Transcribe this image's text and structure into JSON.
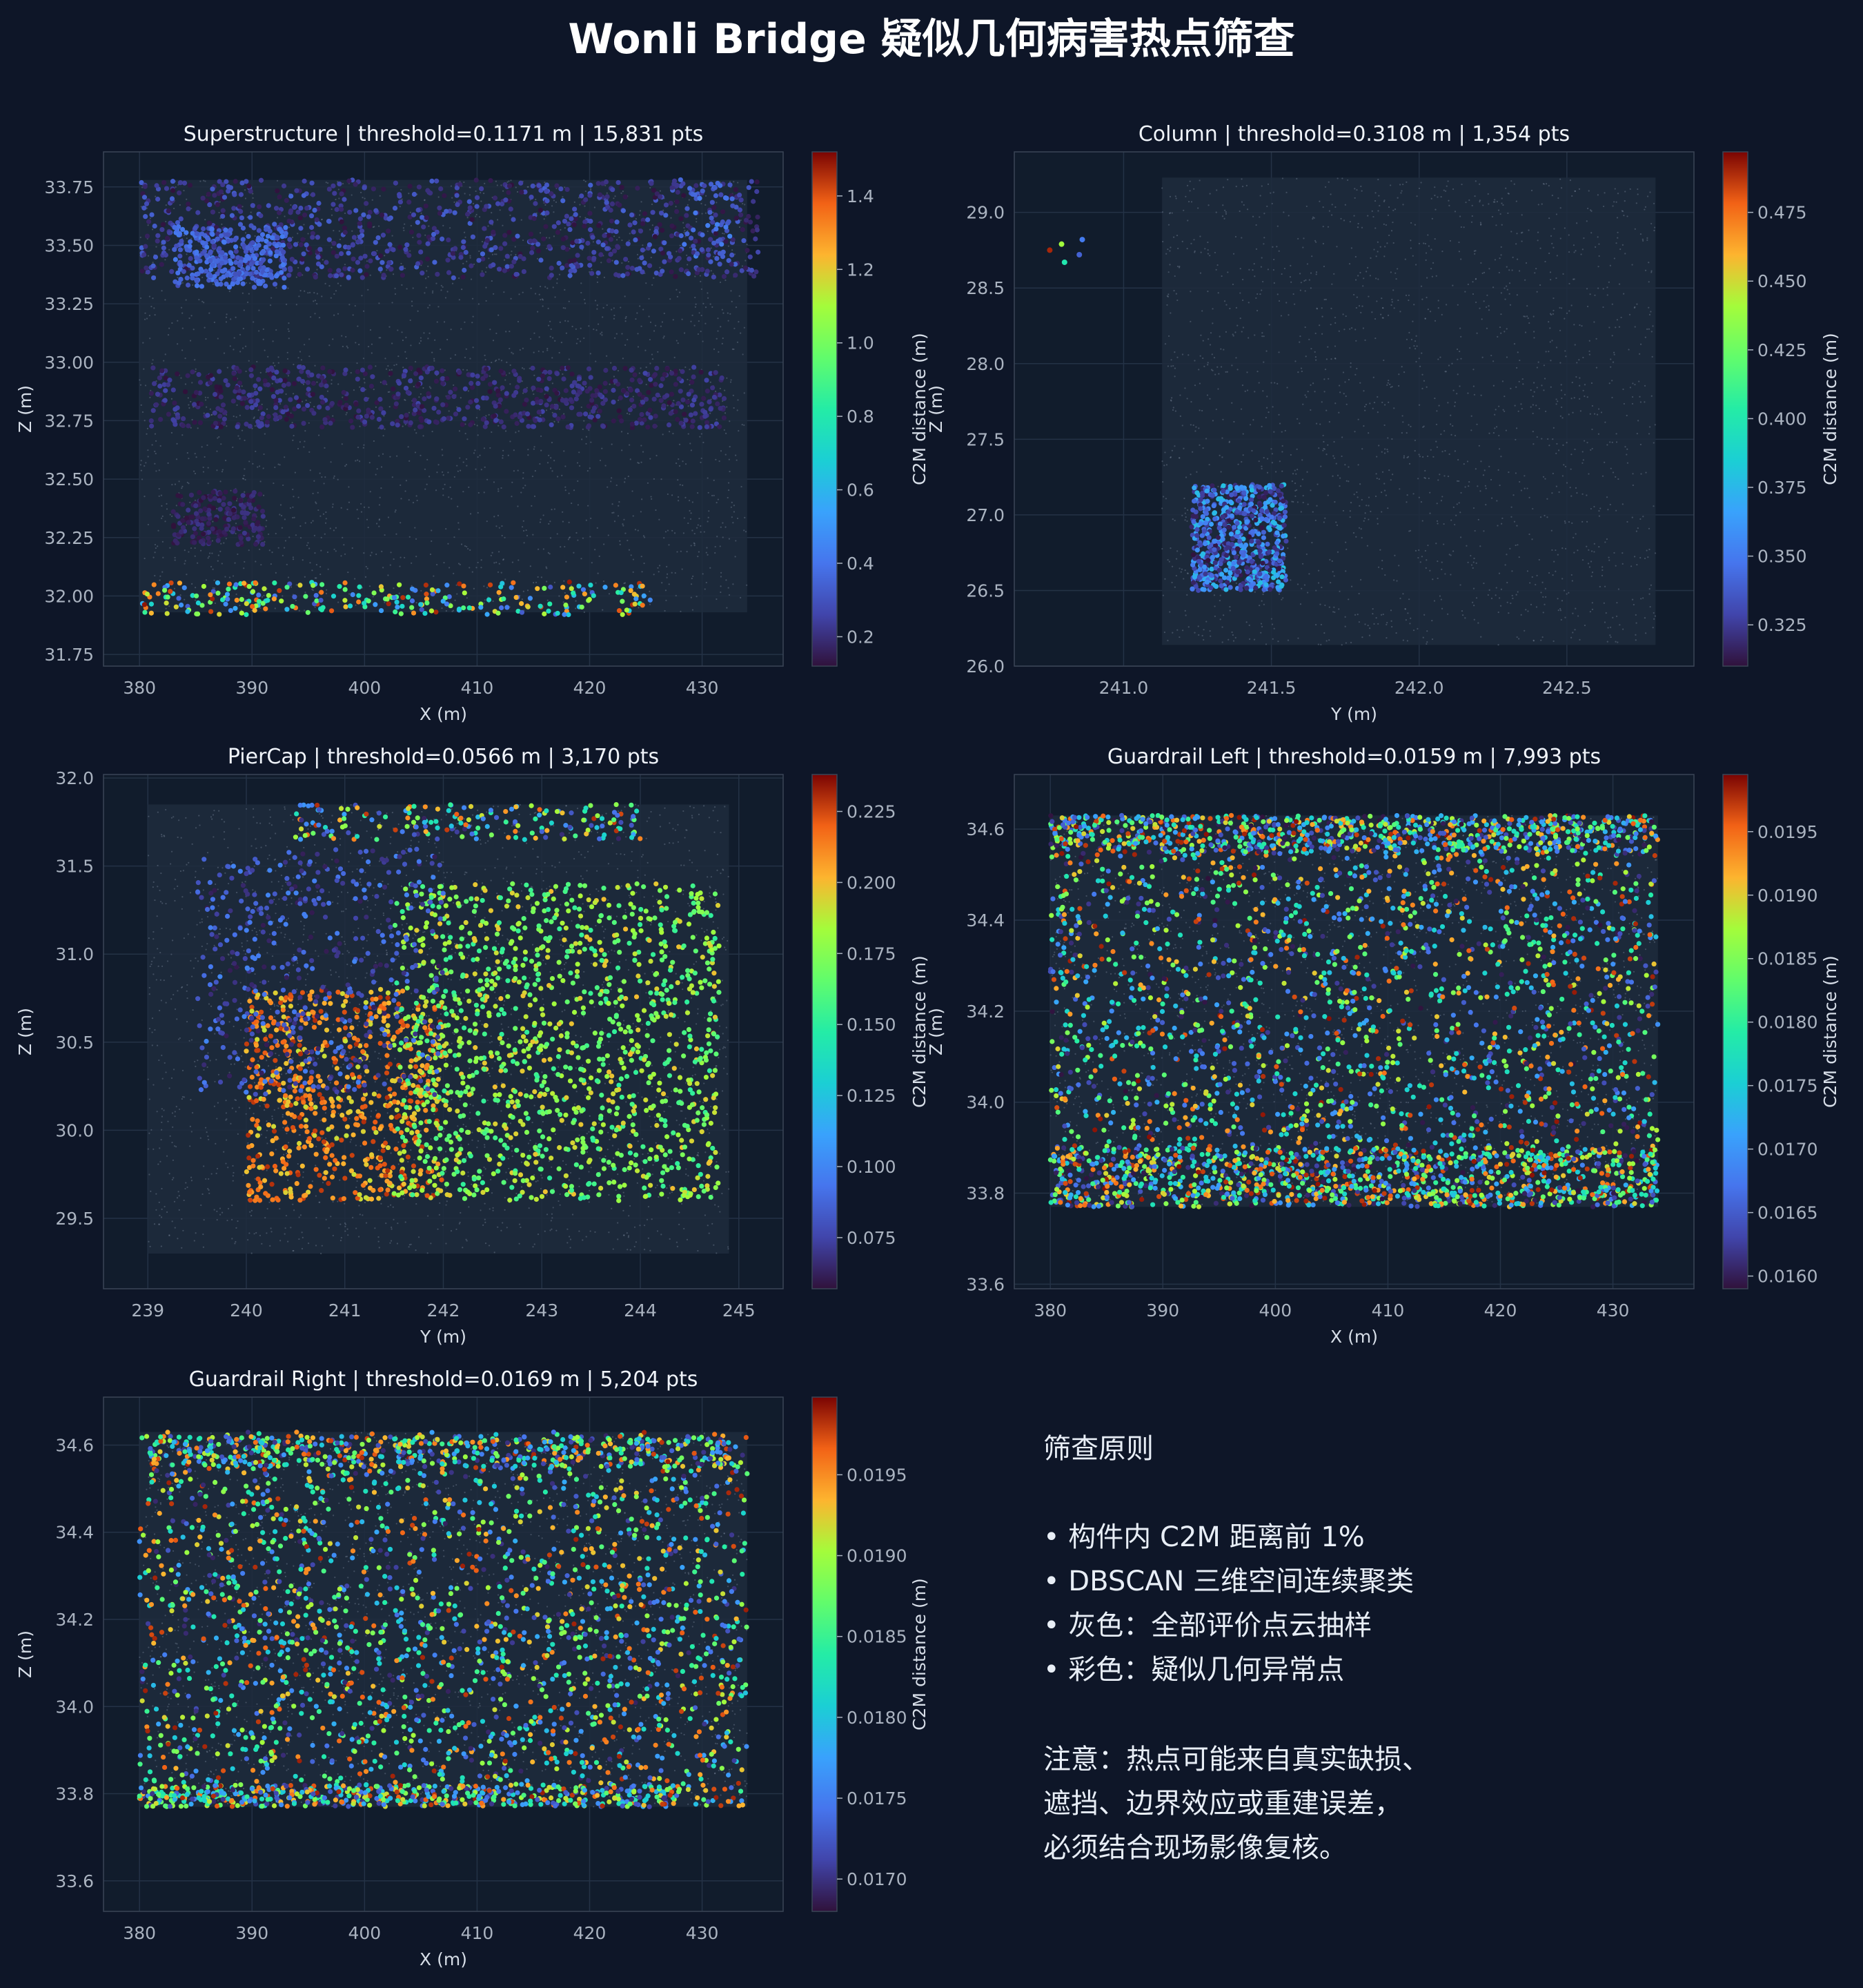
{
  "title": "Wonli Bridge 疑似几何病害热点筛查",
  "colorbar_label": "C2M distance (m)",
  "colors": {
    "background": "#0e1628",
    "axes_bg": "#111c2c",
    "grid": "#243246",
    "gray_points": "#8a98ad"
  },
  "chart_data": [
    {
      "type": "scatter",
      "title": "Superstructure | threshold=0.1171 m | 15,831 pts",
      "xlabel": "X (m)",
      "ylabel": "Z (m)",
      "xlim": [
        376.8,
        437.2
      ],
      "ylim": [
        31.7,
        33.9
      ],
      "xticks": [
        380,
        390,
        400,
        410,
        420,
        430
      ],
      "xtick_labels": [
        "380",
        "390",
        "400",
        "410",
        "420",
        "430"
      ],
      "yticks": [
        31.75,
        32.0,
        32.25,
        32.5,
        32.75,
        33.0,
        33.25,
        33.5,
        33.75
      ],
      "ytick_labels": [
        "31.75",
        "32.00",
        "32.25",
        "32.50",
        "32.75",
        "33.00",
        "33.25",
        "33.50",
        "33.75"
      ],
      "colorbar": {
        "vmin": 0.12,
        "vmax": 1.52,
        "ticks": [
          0.2,
          0.4,
          0.6,
          0.8,
          1.0,
          1.2,
          1.4
        ],
        "tick_labels": [
          "0.2",
          "0.4",
          "0.6",
          "0.8",
          "1.0",
          "1.2",
          "1.4"
        ]
      },
      "background_cloud": [
        {
          "x": [
            380,
            434
          ],
          "y": [
            31.93,
            33.78
          ]
        }
      ],
      "hotspot_clusters": [
        {
          "x": [
            380,
            435
          ],
          "y": [
            33.36,
            33.78
          ],
          "c": [
            0.12,
            0.35
          ],
          "n": 900
        },
        {
          "x": [
            383,
            393
          ],
          "y": [
            33.32,
            33.58
          ],
          "c": [
            0.28,
            0.42
          ],
          "n": 300
        },
        {
          "x": [
            381,
            432
          ],
          "y": [
            32.72,
            32.98
          ],
          "c": [
            0.12,
            0.26
          ],
          "n": 700
        },
        {
          "x": [
            383,
            391
          ],
          "y": [
            32.22,
            32.45
          ],
          "c": [
            0.12,
            0.22
          ],
          "n": 200
        },
        {
          "x": [
            380,
            426
          ],
          "y": [
            31.92,
            32.06
          ],
          "c": [
            0.3,
            1.5
          ],
          "n": 260
        },
        {
          "x": [
            428,
            433
          ],
          "y": [
            33.45,
            33.8
          ],
          "c": [
            0.3,
            0.45
          ],
          "n": 40
        }
      ]
    },
    {
      "type": "scatter",
      "title": "Column | threshold=0.3108 m | 1,354 pts",
      "xlabel": "Y (m)",
      "ylabel": "Z (m)",
      "xlim": [
        240.63,
        242.93
      ],
      "ylim": [
        26.0,
        29.4
      ],
      "xticks": [
        241.0,
        241.5,
        242.0,
        242.5
      ],
      "xtick_labels": [
        "241.0",
        "241.5",
        "242.0",
        "242.5"
      ],
      "yticks": [
        26.0,
        26.5,
        27.0,
        27.5,
        28.0,
        28.5,
        29.0
      ],
      "ytick_labels": [
        "26.0",
        "26.5",
        "27.0",
        "27.5",
        "28.0",
        "28.5",
        "29.0"
      ],
      "colorbar": {
        "vmin": 0.31,
        "vmax": 0.497,
        "ticks": [
          0.325,
          0.35,
          0.375,
          0.4,
          0.425,
          0.45,
          0.475
        ],
        "tick_labels": [
          "0.325",
          "0.350",
          "0.375",
          "0.400",
          "0.425",
          "0.450",
          "0.475"
        ]
      },
      "background_cloud": [
        {
          "x": [
            241.13,
            242.8
          ],
          "y": [
            26.14,
            29.23
          ]
        }
      ],
      "hotspot_clusters": [
        {
          "x": [
            241.23,
            241.55
          ],
          "y": [
            26.5,
            27.2
          ],
          "c": [
            0.31,
            0.38
          ],
          "n": 700
        }
      ],
      "outliers": [
        {
          "x": 240.75,
          "y": 28.75,
          "c": 0.49
        },
        {
          "x": 240.79,
          "y": 28.79,
          "c": 0.44
        },
        {
          "x": 240.8,
          "y": 28.67,
          "c": 0.4
        },
        {
          "x": 240.85,
          "y": 28.72,
          "c": 0.34
        },
        {
          "x": 240.86,
          "y": 28.82,
          "c": 0.35
        }
      ]
    },
    {
      "type": "scatter",
      "title": "PierCap | threshold=0.0566 m | 3,170 pts",
      "xlabel": "Y (m)",
      "ylabel": "Z (m)",
      "xlim": [
        238.55,
        245.45
      ],
      "ylim": [
        29.1,
        32.02
      ],
      "xticks": [
        239,
        240,
        241,
        242,
        243,
        244,
        245
      ],
      "xtick_labels": [
        "239",
        "240",
        "241",
        "242",
        "243",
        "244",
        "245"
      ],
      "yticks": [
        29.5,
        30.0,
        30.5,
        31.0,
        31.5,
        32.0
      ],
      "ytick_labels": [
        "29.5",
        "30.0",
        "30.5",
        "31.0",
        "31.5",
        "32.0"
      ],
      "colorbar": {
        "vmin": 0.057,
        "vmax": 0.238,
        "ticks": [
          0.075,
          0.1,
          0.125,
          0.15,
          0.175,
          0.2,
          0.225
        ],
        "tick_labels": [
          "0.075",
          "0.100",
          "0.125",
          "0.150",
          "0.175",
          "0.200",
          "0.225"
        ]
      },
      "background_cloud": [
        {
          "x": [
            239.0,
            244.9
          ],
          "y": [
            29.3,
            31.85
          ]
        }
      ],
      "hotspot_clusters": [
        {
          "x": [
            240.0,
            242.0
          ],
          "y": [
            29.6,
            30.8
          ],
          "c": [
            0.19,
            0.23
          ],
          "n": 700
        },
        {
          "x": [
            241.5,
            244.8
          ],
          "y": [
            29.6,
            31.4
          ],
          "c": [
            0.15,
            0.2
          ],
          "n": 1300
        },
        {
          "x": [
            239.5,
            242.0
          ],
          "y": [
            30.2,
            31.6
          ],
          "c": [
            0.06,
            0.1
          ],
          "n": 450
        },
        {
          "x": [
            240.5,
            244.0
          ],
          "y": [
            31.65,
            31.85
          ],
          "c": [
            0.06,
            0.23
          ],
          "n": 180
        }
      ]
    },
    {
      "type": "scatter",
      "title": "Guardrail Left | threshold=0.0159 m | 7,993 pts",
      "xlabel": "X (m)",
      "ylabel": "Z (m)",
      "xlim": [
        376.8,
        437.2
      ],
      "ylim": [
        33.59,
        34.72
      ],
      "xticks": [
        380,
        390,
        400,
        410,
        420,
        430
      ],
      "xtick_labels": [
        "380",
        "390",
        "400",
        "410",
        "420",
        "430"
      ],
      "yticks": [
        33.6,
        33.8,
        34.0,
        34.2,
        34.4,
        34.6
      ],
      "ytick_labels": [
        "33.6",
        "33.8",
        "34.0",
        "34.2",
        "34.4",
        "34.6"
      ],
      "colorbar": {
        "vmin": 0.0159,
        "vmax": 0.01995,
        "ticks": [
          0.016,
          0.0165,
          0.017,
          0.0175,
          0.018,
          0.0185,
          0.019,
          0.0195
        ],
        "tick_labels": [
          "0.0160",
          "0.0165",
          "0.0170",
          "0.0175",
          "0.0180",
          "0.0185",
          "0.0190",
          "0.0195"
        ]
      },
      "background_cloud": [
        {
          "x": [
            380,
            434
          ],
          "y": [
            33.77,
            34.63
          ]
        }
      ],
      "hotspot_clusters": [
        {
          "x": [
            380,
            434
          ],
          "y": [
            33.77,
            34.63
          ],
          "c": [
            0.0159,
            0.0199
          ],
          "n": 2300
        },
        {
          "x": [
            380,
            434
          ],
          "y": [
            34.55,
            34.63
          ],
          "c": [
            0.0159,
            0.0199
          ],
          "n": 700
        },
        {
          "x": [
            380,
            434
          ],
          "y": [
            33.77,
            33.9
          ],
          "c": [
            0.0159,
            0.0199
          ],
          "n": 900
        }
      ]
    },
    {
      "type": "scatter",
      "title": "Guardrail Right | threshold=0.0169 m | 5,204 pts",
      "xlabel": "X (m)",
      "ylabel": "Z (m)",
      "xlim": [
        376.8,
        437.2
      ],
      "ylim": [
        33.53,
        34.71
      ],
      "xticks": [
        380,
        390,
        400,
        410,
        420,
        430
      ],
      "xtick_labels": [
        "380",
        "390",
        "400",
        "410",
        "420",
        "430"
      ],
      "yticks": [
        33.6,
        33.8,
        34.0,
        34.2,
        34.4,
        34.6
      ],
      "ytick_labels": [
        "33.6",
        "33.8",
        "34.0",
        "34.2",
        "34.4",
        "34.6"
      ],
      "colorbar": {
        "vmin": 0.0168,
        "vmax": 0.01998,
        "ticks": [
          0.017,
          0.0175,
          0.018,
          0.0185,
          0.019,
          0.0195
        ],
        "tick_labels": [
          "0.0170",
          "0.0175",
          "0.0180",
          "0.0185",
          "0.0190",
          "0.0195"
        ]
      },
      "background_cloud": [
        {
          "x": [
            380,
            434
          ],
          "y": [
            33.77,
            34.63
          ]
        }
      ],
      "hotspot_clusters": [
        {
          "x": [
            380,
            434
          ],
          "y": [
            33.77,
            34.63
          ],
          "c": [
            0.0169,
            0.0199
          ],
          "n": 2200
        },
        {
          "x": [
            380,
            433
          ],
          "y": [
            34.55,
            34.62
          ],
          "c": [
            0.0169,
            0.0199
          ],
          "n": 450
        },
        {
          "x": [
            380,
            428
          ],
          "y": [
            33.77,
            33.82
          ],
          "c": [
            0.0169,
            0.0199
          ],
          "n": 450
        }
      ]
    }
  ],
  "notes": {
    "heading": "筛查原则",
    "bullets": [
      "• 构件内 C2M 距离前 1%",
      "• DBSCAN 三维空间连续聚类",
      "• 灰色：全部评价点云抽样",
      "• 彩色：疑似几何异常点"
    ],
    "caution": [
      "注意：热点可能来自真实缺损、",
      "遮挡、边界效应或重建误差，",
      "必须结合现场影像复核。"
    ]
  }
}
